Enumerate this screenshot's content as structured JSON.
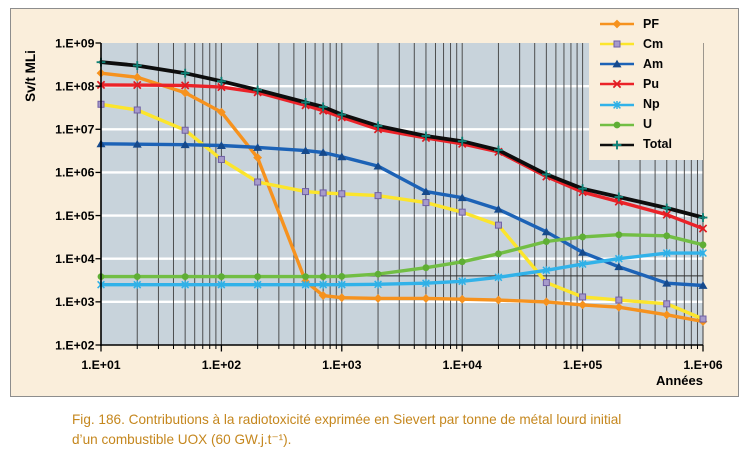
{
  "figure": {
    "caption_line1": "Fig. 186. Contributions à la radiotoxicité exprimée en Sievert par tonne de métal lourd initial",
    "caption_line2": "d’un combustible UOX (60 GW.j.t⁻¹)."
  },
  "colors": {
    "panel_bg": "#faeedb",
    "panel_border": "#8d8d8d",
    "plot_bg": "#c8d3db",
    "grid_vertical": "#3f3f3f",
    "grid_horizontal": "#ffffff",
    "axis": "#000000",
    "reference_line": "#2f2f2f",
    "caption_text": "#c5871e",
    "tick_text": "#000000"
  },
  "chart_data": {
    "type": "line",
    "title": "",
    "xlabel": "Années",
    "ylabel": "Sv/t MLi",
    "x_scale": "log",
    "y_scale": "log",
    "xlim": [
      10,
      1000000
    ],
    "ylim": [
      100,
      1000000000
    ],
    "grid": "log minor vertical (dark) + decade horizontal (white)",
    "legend_position": "top-right",
    "reference_line_y": 4000,
    "x_tick_labels": [
      "1.E+01",
      "1.E+02",
      "1.E+03",
      "1.E+04",
      "1.E+05",
      "1.E+06"
    ],
    "y_tick_labels": [
      "1.E+09",
      "1.E+08",
      "1.E+07",
      "1.E+06",
      "1.E+05",
      "1.E+04",
      "1.E+03",
      "1.E+02"
    ],
    "x": [
      10,
      20,
      50,
      100,
      200,
      500,
      700,
      1000,
      2000,
      5000,
      10000,
      20000,
      50000,
      100000,
      200000,
      500000,
      1000000
    ],
    "series": [
      {
        "name": "PF",
        "color": "#f6921e",
        "marker": "diamond",
        "marker_fill": "#f6921e",
        "values": [
          200000000.0,
          160000000.0,
          70000000.0,
          25000000.0,
          2200000.0,
          3000.0,
          1400.0,
          1250.0,
          1200.0,
          1200.0,
          1150.0,
          1100.0,
          1000.0,
          850.0,
          750.0,
          500.0,
          350.0
        ]
      },
      {
        "name": "Cm",
        "color": "#fce52c",
        "marker": "square",
        "marker_fill": "#a79bcb",
        "marker_stroke": "#6f5fa5",
        "values": [
          38000000.0,
          28000000.0,
          9500000.0,
          2000000.0,
          600000.0,
          360000.0,
          335000.0,
          320000.0,
          290000.0,
          200000.0,
          120000.0,
          60000.0,
          2800.0,
          1300.0,
          1100.0,
          900.0,
          400.0
        ]
      },
      {
        "name": "Am",
        "color": "#1c62b6",
        "marker": "triangle",
        "marker_fill": "#164a8c",
        "values": [
          4600000.0,
          4500000.0,
          4400000.0,
          4200000.0,
          3800000.0,
          3200000.0,
          2900000.0,
          2300000.0,
          1400000.0,
          360000.0,
          260000.0,
          140000.0,
          42000.0,
          14000.0,
          6500.0,
          2700.0,
          2400.0
        ]
      },
      {
        "name": "Pu",
        "color": "#eb2228",
        "marker": "x",
        "marker_stroke": "#e01b22",
        "values": [
          107000000.0,
          106000000.0,
          104000000.0,
          95000000.0,
          72000000.0,
          36000000.0,
          27000000.0,
          19000000.0,
          10000000.0,
          6300000.0,
          4600000.0,
          3000000.0,
          800000.0,
          350000.0,
          210000.0,
          105000.0,
          50000.0
        ]
      },
      {
        "name": "Np",
        "color": "#31b2e9",
        "marker": "asterisk",
        "marker_stroke": "#2fb0e6",
        "values": [
          2500.0,
          2500.0,
          2500.0,
          2500.0,
          2500.0,
          2500.0,
          2500.0,
          2500.0,
          2550.0,
          2700.0,
          3000.0,
          3700.0,
          5400.0,
          7500.0,
          10000.0,
          13500.0,
          13500.0
        ]
      },
      {
        "name": "U",
        "color": "#72be44",
        "marker": "circle",
        "marker_fill": "#5fae35",
        "values": [
          3850.0,
          3850.0,
          3850.0,
          3850.0,
          3850.0,
          3850.0,
          3850.0,
          3900.0,
          4400.0,
          6200.0,
          8500.0,
          13000.0,
          25000.0,
          32000.0,
          36000.0,
          34000.0,
          21000.0
        ]
      },
      {
        "name": "Total",
        "color": "#0d0d0d",
        "marker": "plus",
        "marker_stroke": "#0f8277",
        "values": [
          360000000.0,
          300000000.0,
          200000000.0,
          130000000.0,
          82000000.0,
          42000000.0,
          33000000.0,
          22000000.0,
          12000000.0,
          7000000.0,
          5300000.0,
          3300000.0,
          900000.0,
          420000.0,
          270000.0,
          150000.0,
          90000.0
        ]
      }
    ]
  }
}
